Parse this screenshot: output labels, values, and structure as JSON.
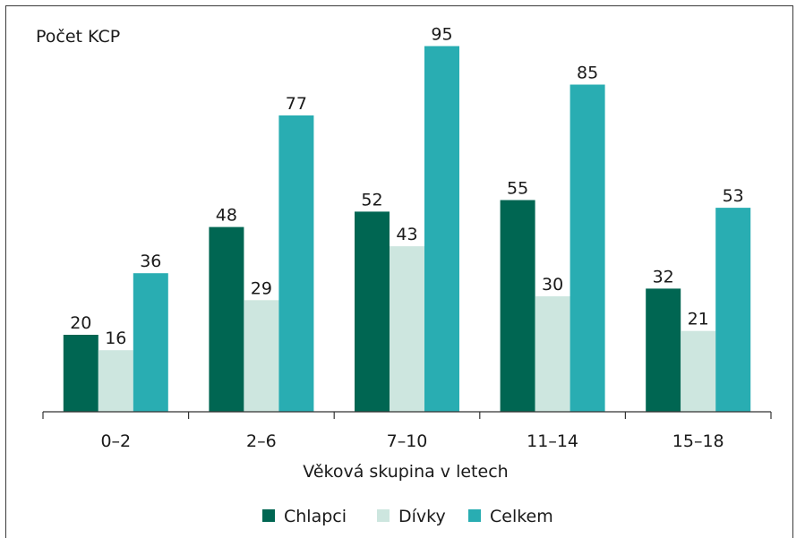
{
  "chart_data": {
    "type": "bar",
    "title": "",
    "ylabel": "Počet KCP",
    "xlabel": "Věková skupina v letech",
    "categories": [
      "0–2",
      "2–6",
      "7–10",
      "11–14",
      "15–18"
    ],
    "series": [
      {
        "name": "Chlapci",
        "color": "#006652",
        "values": [
          20,
          48,
          52,
          55,
          32
        ]
      },
      {
        "name": "Dívky",
        "color": "#cde6df",
        "values": [
          16,
          29,
          43,
          30,
          21
        ]
      },
      {
        "name": "Celkem",
        "color": "#29adb2",
        "values": [
          36,
          77,
          95,
          85,
          53
        ]
      }
    ],
    "ylim": [
      0,
      100
    ],
    "grid": false,
    "legend_position": "bottom"
  }
}
